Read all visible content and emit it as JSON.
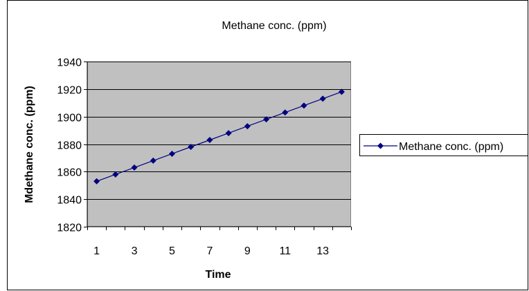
{
  "chart_data": {
    "type": "line",
    "title": "Methane conc. (ppm)",
    "xlabel": "Time",
    "ylabel": "Mdethane conc. (ppm)",
    "x": [
      1,
      2,
      3,
      4,
      5,
      6,
      7,
      8,
      9,
      10,
      11,
      12,
      13,
      14
    ],
    "x_tick_labels": [
      "1",
      "3",
      "5",
      "7",
      "9",
      "11",
      "13"
    ],
    "ylim": [
      1820,
      1940
    ],
    "y_ticks": [
      1820,
      1840,
      1860,
      1880,
      1900,
      1920,
      1940
    ],
    "grid": "horizontal",
    "legend_position": "right",
    "plot_background": "#c0c0c0",
    "series": [
      {
        "name": "Methane conc. (ppm)",
        "color": "#000080",
        "marker": "diamond",
        "values": [
          1853,
          1858,
          1863,
          1868,
          1873,
          1878,
          1883,
          1888,
          1893,
          1898,
          1903,
          1908,
          1913,
          1918
        ]
      }
    ]
  }
}
